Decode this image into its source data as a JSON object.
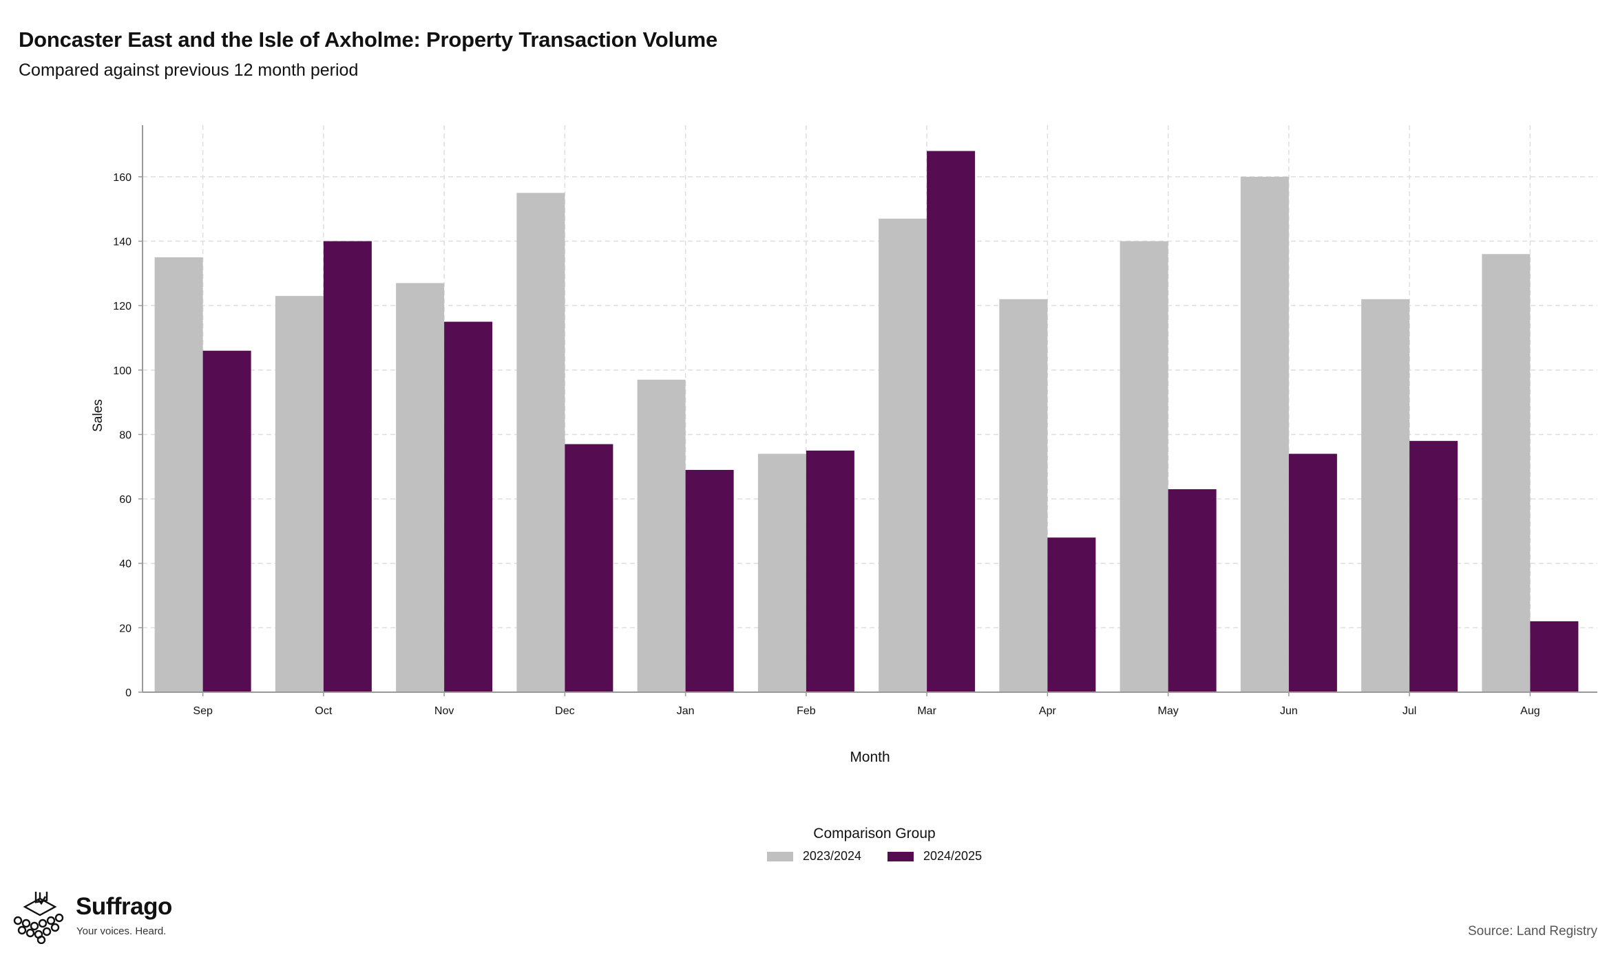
{
  "colors": {
    "series_2023": "#c0c0c0",
    "series_2024": "#560c51",
    "grid": "#dedede",
    "axis": "#999999"
  },
  "brand": {
    "name": "Suffrago",
    "tagline": "Your voices. Heard.",
    "icon": "ballot-box-crowd-icon"
  },
  "source_text": "Source: Land Registry",
  "chart_data": {
    "type": "bar",
    "title": "Doncaster East and the Isle of Axholme: Property Transaction Volume",
    "subtitle": "Compared against previous 12 month period",
    "xlabel": "Month",
    "ylabel": "Sales",
    "ylim": [
      0,
      176
    ],
    "yticks": [
      0,
      20,
      40,
      60,
      80,
      100,
      120,
      140,
      160
    ],
    "grid": true,
    "legend_title": "Comparison Group",
    "legend_position": "bottom",
    "categories": [
      "Sep",
      "Oct",
      "Nov",
      "Dec",
      "Jan",
      "Feb",
      "Mar",
      "Apr",
      "May",
      "Jun",
      "Jul",
      "Aug"
    ],
    "series": [
      {
        "name": "2023/2024",
        "values": [
          135,
          123,
          127,
          155,
          97,
          74,
          147,
          122,
          140,
          160,
          122,
          136
        ]
      },
      {
        "name": "2024/2025",
        "values": [
          106,
          140,
          115,
          77,
          69,
          75,
          168,
          48,
          63,
          74,
          78,
          22
        ]
      }
    ]
  }
}
